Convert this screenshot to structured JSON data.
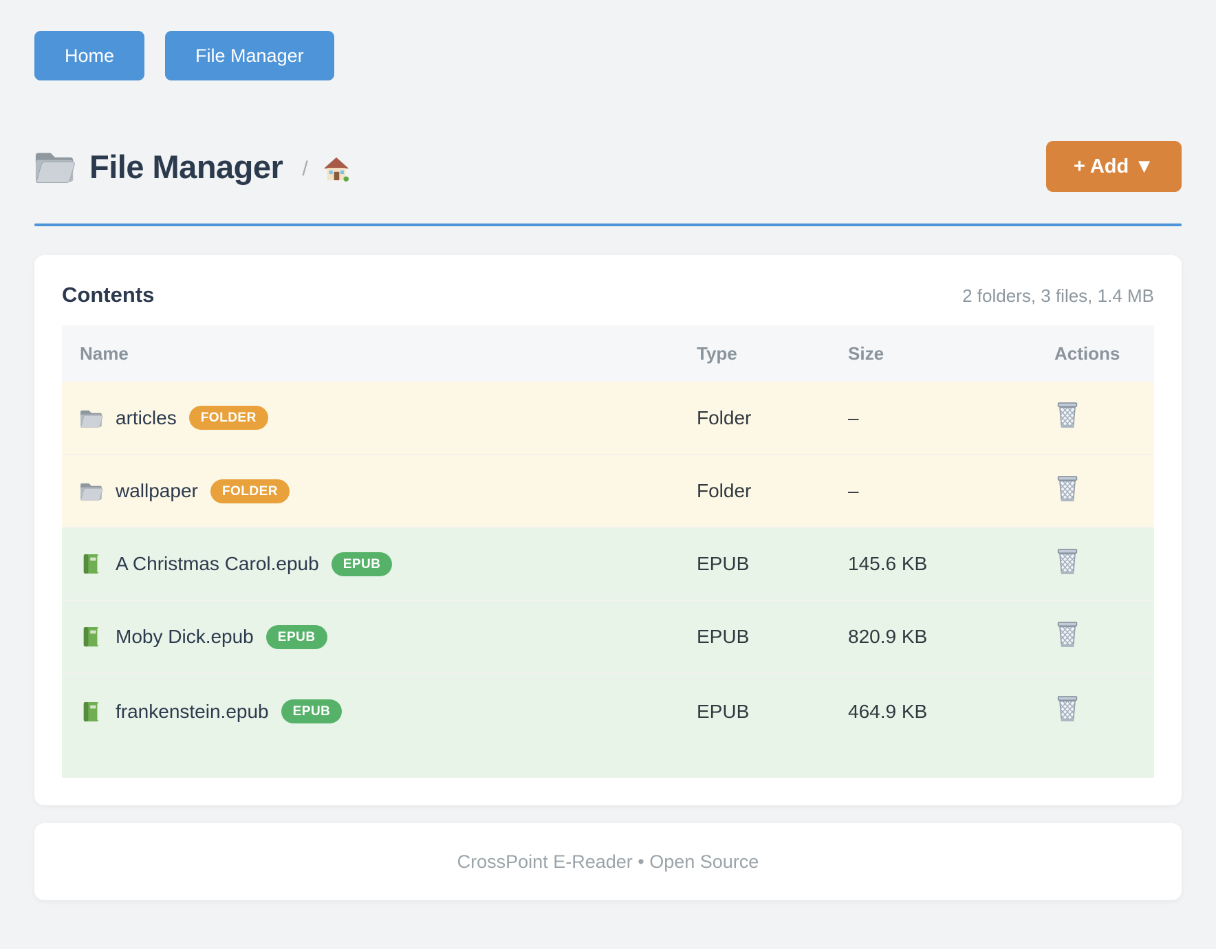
{
  "nav": {
    "home_label": "Home",
    "file_manager_label": "File Manager"
  },
  "header": {
    "title": "File Manager",
    "breadcrumb_separator": "/",
    "add_button_label": "+ Add ▼"
  },
  "panel": {
    "title": "Contents",
    "summary": "2 folders, 3 files, 1.4 MB"
  },
  "table": {
    "columns": [
      "Name",
      "Type",
      "Size",
      "Actions"
    ],
    "rows": [
      {
        "name": "articles",
        "badge": "FOLDER",
        "kind": "folder",
        "type": "Folder",
        "size": "–"
      },
      {
        "name": "wallpaper",
        "badge": "FOLDER",
        "kind": "folder",
        "type": "Folder",
        "size": "–"
      },
      {
        "name": "A Christmas Carol.epub",
        "badge": "EPUB",
        "kind": "epub",
        "type": "EPUB",
        "size": "145.6 KB"
      },
      {
        "name": "Moby Dick.epub",
        "badge": "EPUB",
        "kind": "epub",
        "type": "EPUB",
        "size": "820.9 KB"
      },
      {
        "name": "frankenstein.epub",
        "badge": "EPUB",
        "kind": "epub",
        "type": "EPUB",
        "size": "464.9 KB"
      }
    ]
  },
  "footer": {
    "text": "CrossPoint E-Reader • Open Source"
  },
  "colors": {
    "accent_blue": "#4e94d8",
    "accent_orange": "#d9843c",
    "heading": "#2c3a4d",
    "muted": "#8d979e",
    "table_header_bg": "#f6f7f9",
    "folder_row_bg": "#fdf7e6",
    "epub_row_bg": "#e9f4e9",
    "folder_badge": "#e9a23b",
    "epub_badge": "#57b269",
    "page_bg": "#f2f3f4"
  }
}
